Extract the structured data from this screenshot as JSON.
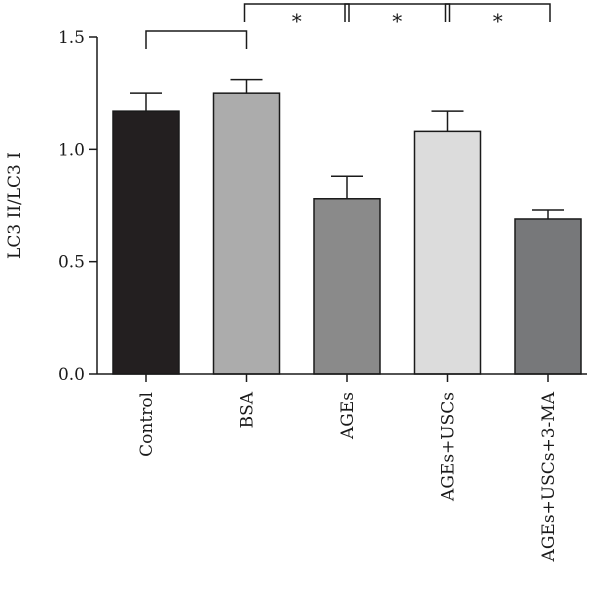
{
  "chart_data": {
    "type": "bar",
    "title": "",
    "xlabel": "",
    "ylabel": "LC3 II/LC3 I",
    "ylim": [
      0,
      1.5
    ],
    "yticks": [
      "0.0",
      "0.5",
      "1.0",
      "1.5"
    ],
    "categories": [
      "Control",
      "BSA",
      "AGEs",
      "AGEs+USCs",
      "AGEs+USCs+3-MA"
    ],
    "values": [
      1.17,
      1.25,
      0.78,
      1.08,
      0.69
    ],
    "errors": [
      0.08,
      0.06,
      0.1,
      0.09,
      0.04
    ],
    "bar_colors": [
      "#231f20",
      "#acacac",
      "#8a8a8a",
      "#dcdcdc",
      "#77787a"
    ],
    "grid": false,
    "significance": [
      {
        "from": "Control",
        "to": "BSA",
        "label": ""
      },
      {
        "from": "BSA",
        "to": "AGEs",
        "label": "*"
      },
      {
        "from": "AGEs",
        "to": "AGEs+USCs",
        "label": "*"
      },
      {
        "from": "AGEs+USCs",
        "to": "AGEs+USCs+3-MA",
        "label": "*"
      }
    ]
  }
}
